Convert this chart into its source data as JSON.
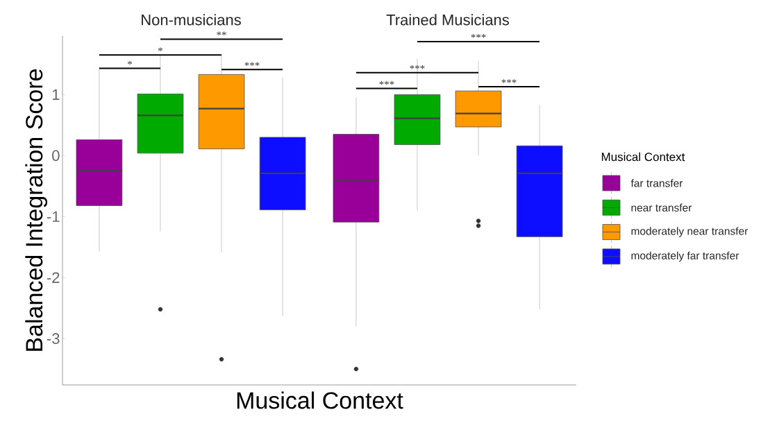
{
  "chart_data": {
    "type": "box",
    "xlabel": "Musical Context",
    "ylabel": "Balanced Integration Score",
    "legend_title": "Musical Context",
    "legend": "right",
    "categories": [
      "Non-musicians",
      "Trained Musicians"
    ],
    "ylim": [
      -3.76,
      1.96
    ],
    "yticks": [
      -3,
      -2,
      -1,
      0,
      1
    ],
    "series": [
      {
        "name": "far transfer",
        "color": "#990099",
        "boxes": [
          {
            "low": -1.57,
            "q1": -0.82,
            "median": -0.24,
            "q3": 0.26,
            "high": 1.43
          },
          {
            "low": -2.8,
            "q1": -1.09,
            "median": -0.4,
            "q3": 0.35,
            "high": 0.95,
            "outliers": [
              -3.5
            ]
          }
        ]
      },
      {
        "name": "near transfer",
        "color": "#00aa00",
        "boxes": [
          {
            "low": -1.24,
            "q1": 0.04,
            "median": 0.66,
            "q3": 1.01,
            "high": 1.64,
            "outliers": [
              -2.52
            ]
          },
          {
            "low": -0.9,
            "q1": 0.18,
            "median": 0.61,
            "q3": 1.0,
            "high": 1.59
          }
        ]
      },
      {
        "name": "moderately near transfer",
        "color": "#ff9900",
        "boxes": [
          {
            "low": -1.59,
            "q1": 0.11,
            "median": 0.77,
            "q3": 1.33,
            "high": 1.65,
            "outliers": [
              -3.34
            ]
          },
          {
            "low": 0.0,
            "q1": 0.47,
            "median": 0.69,
            "q3": 1.06,
            "high": 1.55,
            "outliers": [
              -1.07,
              -1.15
            ]
          }
        ]
      },
      {
        "name": "moderately far transfer",
        "color": "#0d0dff",
        "boxes": [
          {
            "low": -2.63,
            "q1": -0.89,
            "median": -0.29,
            "q3": 0.3,
            "high": 1.28
          },
          {
            "low": -2.52,
            "q1": -1.33,
            "median": -0.29,
            "q3": 0.16,
            "high": 0.83
          }
        ]
      }
    ],
    "annotations": [
      "*",
      "*",
      "**",
      "***",
      "***",
      "***",
      "***",
      "***"
    ]
  }
}
